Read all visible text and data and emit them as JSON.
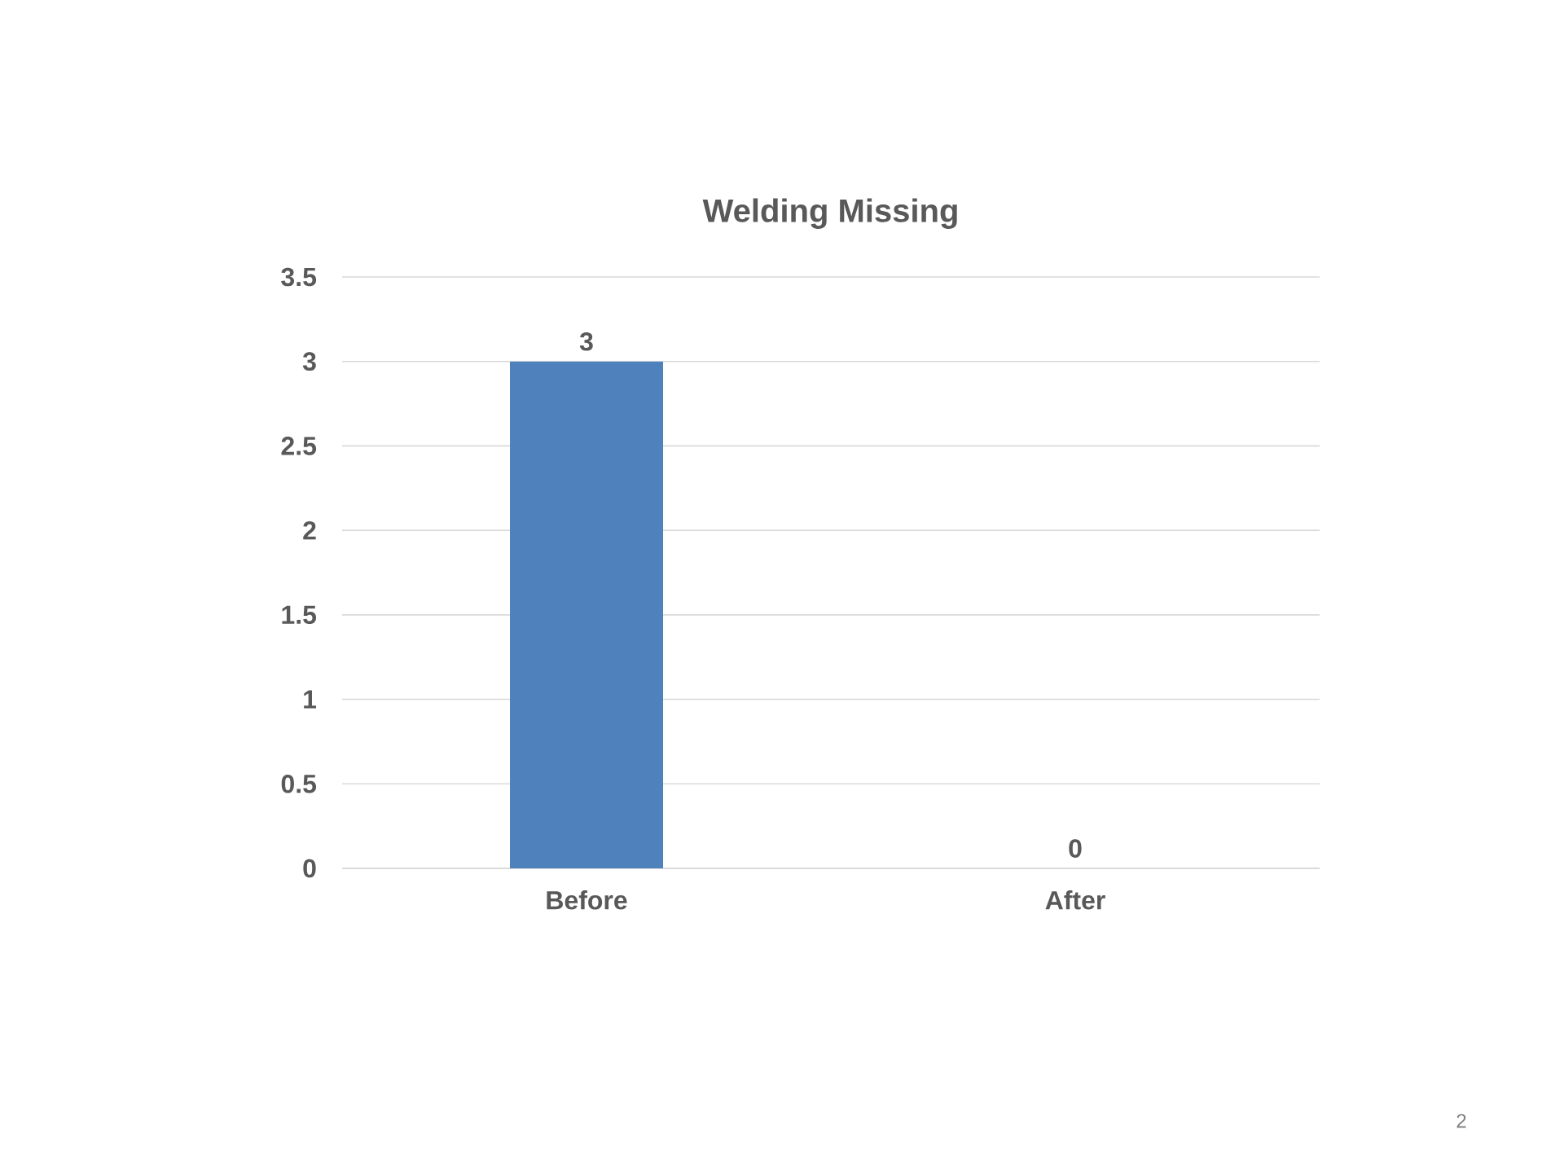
{
  "chart_data": {
    "type": "bar",
    "title": "Welding Missing",
    "categories": [
      "Before",
      "After"
    ],
    "values": [
      3,
      0
    ],
    "color": "#4f81bd",
    "ylim": [
      0,
      3.5
    ],
    "yticks": [
      0,
      0.5,
      1,
      1.5,
      2,
      2.5,
      3,
      3.5
    ],
    "grid": "y",
    "data_labels": true,
    "annotations": [
      "2"
    ]
  }
}
